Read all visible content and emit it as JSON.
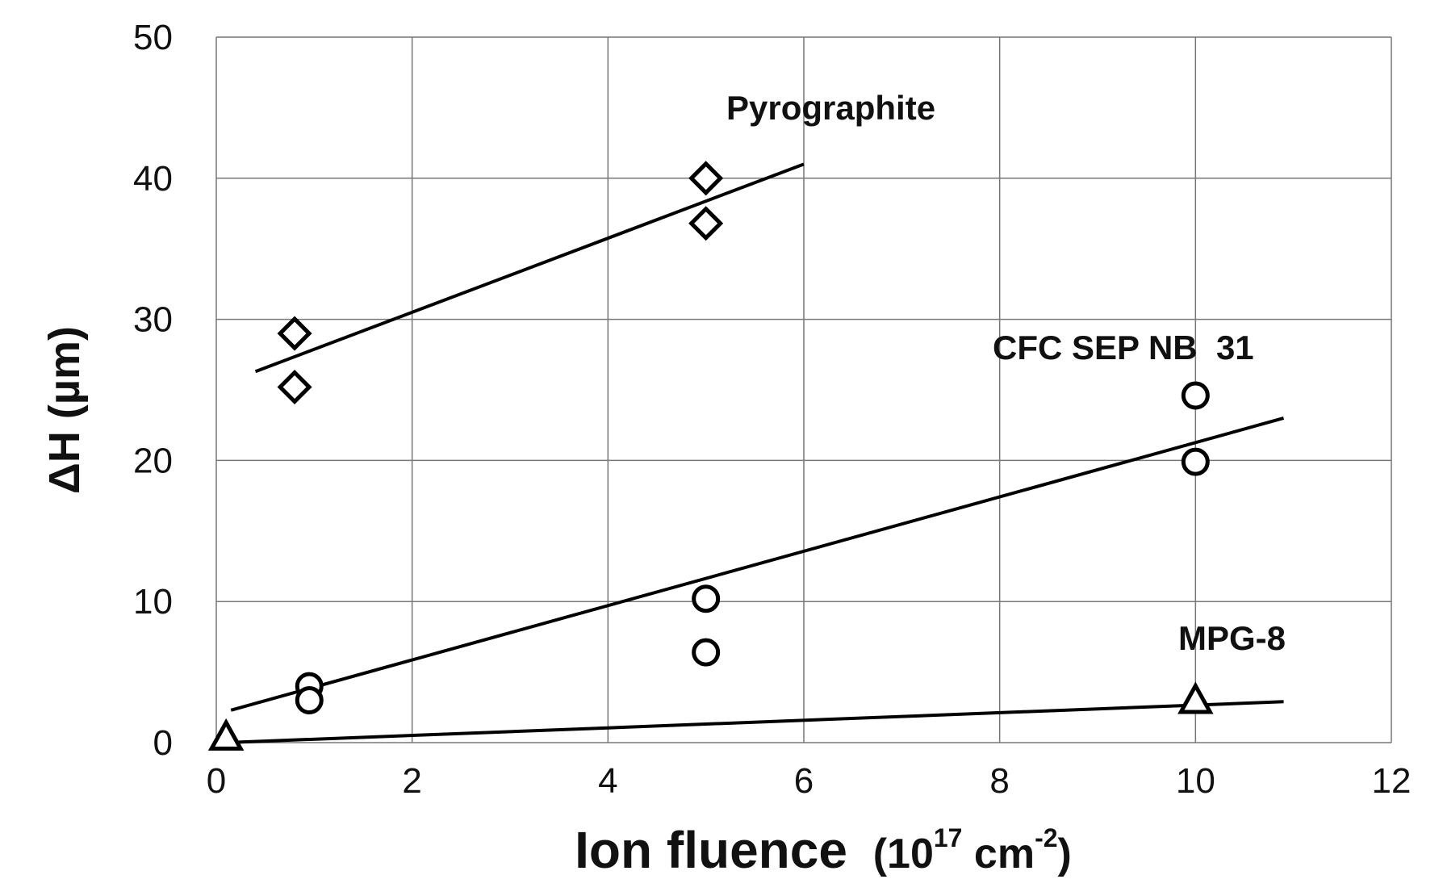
{
  "chart_data": {
    "type": "scatter",
    "title": "",
    "xlabel": "Ion fluence",
    "xlabel_unit_base": "(10",
    "xlabel_unit_exp": "17",
    "xlabel_unit_mid": " cm",
    "xlabel_unit_exp2": "-2",
    "xlabel_unit_end": ")",
    "ylabel": "ΔH (µm)",
    "xlim": [
      0,
      12
    ],
    "ylim": [
      0,
      50
    ],
    "xticks": [
      0,
      2,
      4,
      6,
      8,
      10,
      12
    ],
    "yticks": [
      0,
      10,
      20,
      30,
      40,
      50
    ],
    "grid": true,
    "series": [
      {
        "name": "Pyrographite",
        "marker": "diamond",
        "points": [
          [
            0.8,
            29
          ],
          [
            0.8,
            25.2
          ],
          [
            5,
            40
          ],
          [
            5,
            36.8
          ]
        ],
        "fit": [
          [
            0.4,
            26.3
          ],
          [
            6,
            41
          ]
        ]
      },
      {
        "name": "CFC SEP NB  31",
        "marker": "circle",
        "points": [
          [
            0.95,
            4
          ],
          [
            0.95,
            3
          ],
          [
            5,
            10.2
          ],
          [
            5,
            6.4
          ],
          [
            10,
            24.6
          ],
          [
            10,
            19.9
          ]
        ],
        "fit": [
          [
            0.15,
            2.3
          ],
          [
            10.9,
            23
          ]
        ]
      },
      {
        "name": "MPG-8",
        "marker": "triangle",
        "points": [
          [
            0.1,
            0.4
          ],
          [
            10,
            3
          ]
        ],
        "fit": [
          [
            0.1,
            0
          ],
          [
            10.9,
            2.9
          ]
        ]
      }
    ]
  }
}
